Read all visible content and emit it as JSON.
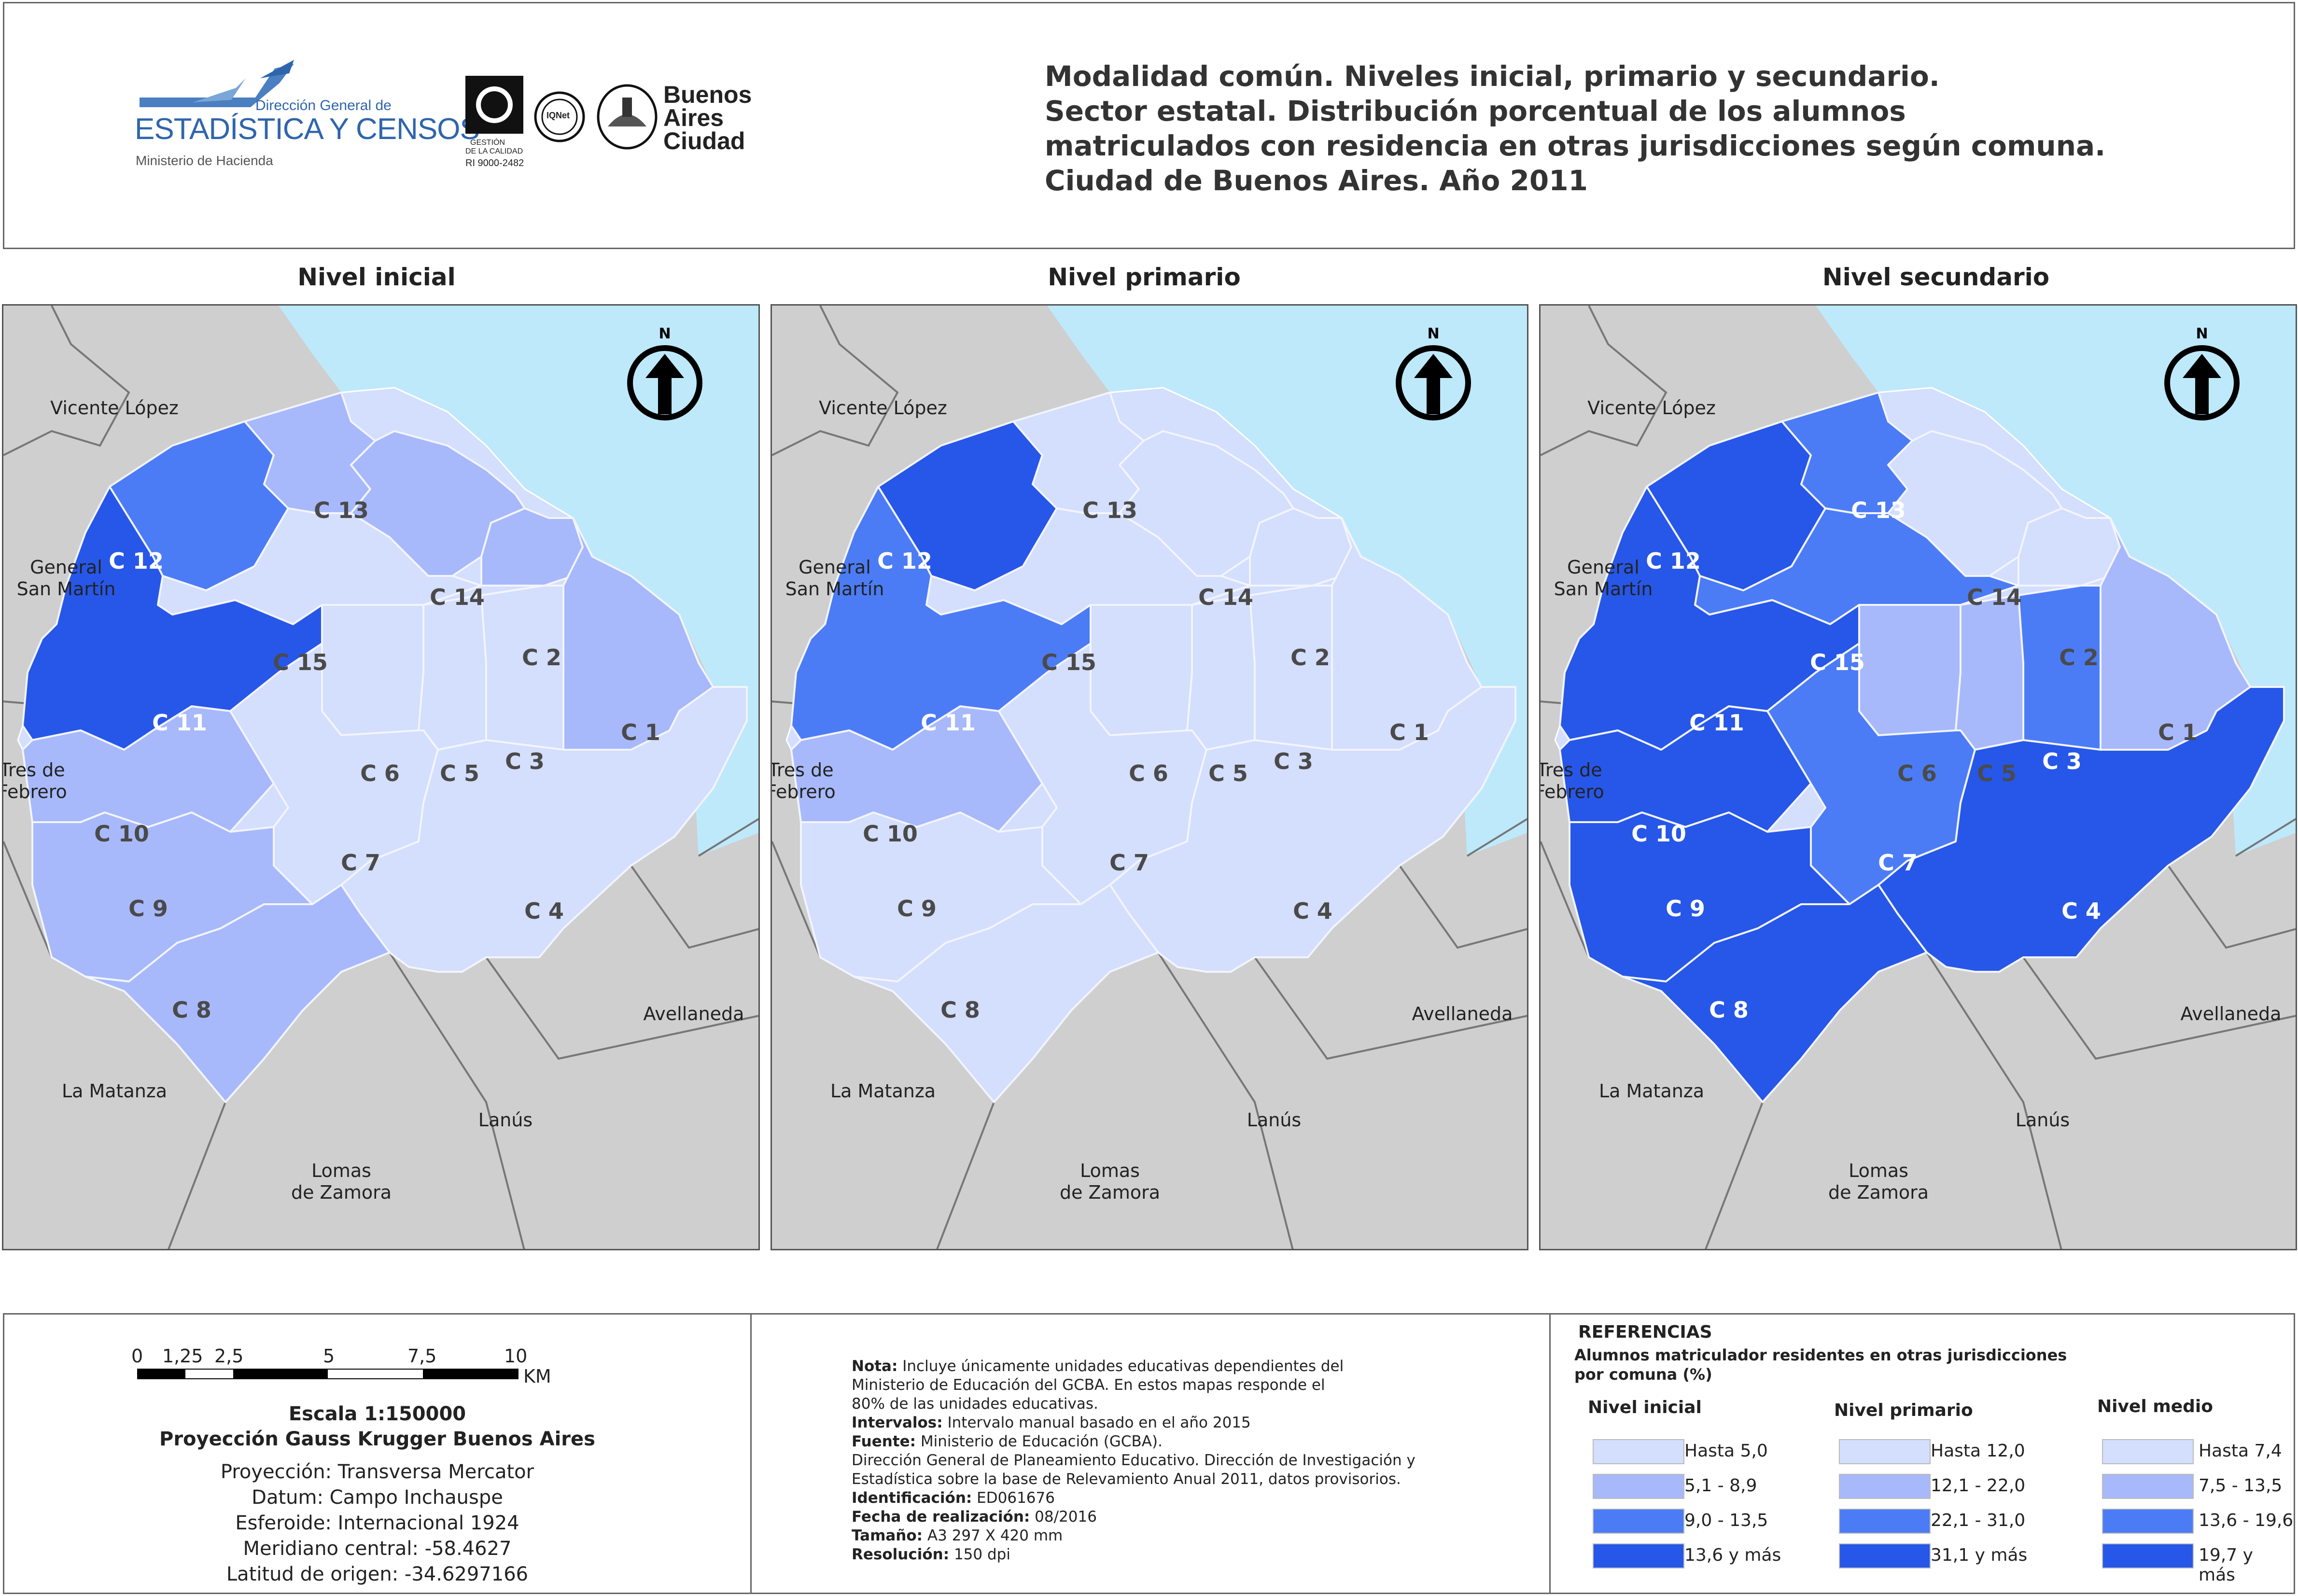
{
  "header": {
    "title_lines": [
      "Modalidad común. Niveles inicial, primario y secundario.",
      "Sector estatal. Distribución porcentual de los alumnos",
      "matriculados con residencia en otras jurisdicciones según comuna.",
      "Ciudad de Buenos Aires. Año 2011"
    ],
    "logo": {
      "top": "Dirección General de",
      "main": "ESTADÍSTICA Y CENSOS",
      "sub": "Ministerio de Hacienda",
      "iram": "IRAM",
      "iram_sub1": "GESTIÓN",
      "iram_sub2": "DE LA CALIDAD",
      "iram_code": "RI 9000-2482",
      "iqnet": "IQNet",
      "city": [
        "Buenos",
        "Aires",
        "Ciudad"
      ]
    }
  },
  "panels": [
    {
      "title": "Nivel inicial"
    },
    {
      "title": "Nivel primario"
    },
    {
      "title": "Nivel secundario"
    }
  ],
  "map": {
    "north": "N",
    "municipalities": [
      "Vicente López",
      "General",
      "San Martín",
      "Tres de",
      "Febrero",
      "La Matanza",
      "Lomas",
      "de Zamora",
      "Lanús",
      "Avellaneda"
    ],
    "comunas": [
      "C 1",
      "C 2",
      "C 3",
      "C 4",
      "C 5",
      "C 6",
      "C 7",
      "C 8",
      "C 9",
      "C 10",
      "C 11",
      "C 12",
      "C 13",
      "C 14",
      "C 15"
    ],
    "class_levels": {
      "inicial": {
        "C 1": 2,
        "C 2": 2,
        "C 3": 1,
        "C 4": 1,
        "C 5": 1,
        "C 6": 1,
        "C 7": 1,
        "C 8": 2,
        "C 9": 2,
        "C 10": 2,
        "C 11": 4,
        "C 12": 3,
        "C 13": 2,
        "C 14": 2,
        "C 15": 1
      },
      "primario": {
        "C 1": 1,
        "C 2": 1,
        "C 3": 1,
        "C 4": 1,
        "C 5": 1,
        "C 6": 1,
        "C 7": 1,
        "C 8": 1,
        "C 9": 1,
        "C 10": 2,
        "C 11": 3,
        "C 12": 4,
        "C 13": 1,
        "C 14": 1,
        "C 15": 1
      },
      "secundario": {
        "C 1": 2,
        "C 2": 1,
        "C 3": 3,
        "C 4": 4,
        "C 5": 2,
        "C 6": 2,
        "C 7": 3,
        "C 8": 4,
        "C 9": 4,
        "C 10": 4,
        "C 11": 4,
        "C 12": 4,
        "C 13": 3,
        "C 14": 1,
        "C 15": 3
      }
    },
    "colors": {
      "1": "#d4defd",
      "2": "#a7b9fb",
      "3": "#4c7cf5",
      "4": "#2757e8",
      "water": "#bee9fb",
      "outside": "#cfcfcf"
    }
  },
  "footer": {
    "scale_numbers": [
      "0",
      "1,25",
      "2,5",
      "5",
      "7,5",
      "10"
    ],
    "scale_unit": "KM",
    "scale_title": "Escala 1:150000",
    "projection_title": "Proyección Gauss Krugger Buenos Aires",
    "projection_lines": [
      "Proyección: Transversa Mercator",
      "Datum: Campo Inchauspe",
      "Esferoide: Internacional 1924",
      "Meridiano central: -58.4627",
      "Latitud de origen: -34.6297166"
    ],
    "notes": [
      {
        "label": "Nota:",
        "text": " Incluye únicamente unidades educativas dependientes del"
      },
      {
        "label": "",
        "text": "Ministerio de Educación del GCBA. En estos mapas responde el"
      },
      {
        "label": "",
        "text": "80% de las unidades educativas."
      },
      {
        "label": "Intervalos:",
        "text": " Intervalo manual basado en el año 2015"
      },
      {
        "label": "Fuente:",
        "text": " Ministerio de Educación (GCBA)."
      },
      {
        "label": "",
        "text": "Dirección General de Planeamiento Educativo. Dirección de Investigación y"
      },
      {
        "label": "",
        "text": "Estadística sobre la base de Relevamiento Anual 2011, datos provisorios."
      },
      {
        "label": "Identificación:",
        "text": " ED061676"
      },
      {
        "label": "Fecha de realización:",
        "text": " 08/2016"
      },
      {
        "label": "Tamaño:",
        "text": " A3 297 X 420 mm"
      },
      {
        "label": "Resolución:",
        "text": " 150 dpi"
      }
    ],
    "legend": {
      "title": "REFERENCIAS",
      "subtitle1": "Alumnos matriculador residentes en otras jurisdicciones",
      "subtitle2": "por comuna (%)",
      "groups": [
        {
          "name": "Nivel inicial",
          "items": [
            "Hasta 5,0",
            "5,1 - 8,9",
            "9,0 - 13,5",
            "13,6 y más"
          ]
        },
        {
          "name": "Nivel primario",
          "items": [
            "Hasta 12,0",
            "12,1 - 22,0",
            "22,1 - 31,0",
            "31,1 y más"
          ]
        },
        {
          "name": "Nivel medio",
          "items": [
            "Hasta 7,4",
            "7,5 - 13,5",
            "13,6 - 19,6",
            "19,7 y más"
          ]
        }
      ]
    }
  }
}
